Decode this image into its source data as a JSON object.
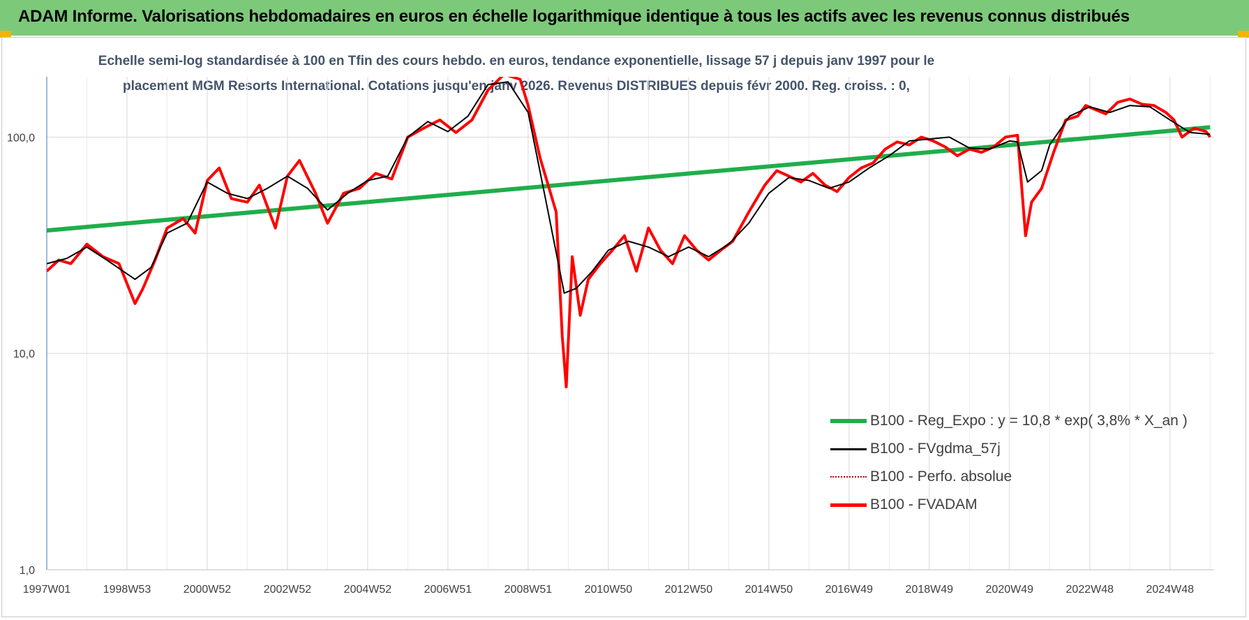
{
  "banner": {
    "title": "ADAM Informe. Valorisations hebdomadaires en euros en échelle logarithmique identique à tous les actifs avec les revenus connus distribués"
  },
  "colors": {
    "banner_bg": "#7dc97a",
    "regression": "#1fae4b",
    "smoothed": "#000000",
    "absolute": "#c00000",
    "fvadam": "#ff0000",
    "gridline": "#d9d9d9",
    "subtitle": "#44546a"
  },
  "chart_data": {
    "type": "line",
    "title_line1": "Echelle semi-log standardisée à 100 en Tfin des cours hebdo. en euros, tendance exponentielle, lissage 57 j depuis janv 1997 pour le",
    "title_line2": "placement MGM Resorts International. Cotations jusqu'en janv 2026.  Revenus DISTRIBUES depuis févr 2000.  Reg. croiss. : 0,",
    "y_scale": "log",
    "ylim": [
      1,
      190
    ],
    "y_ticks": [
      {
        "value": 1,
        "label": "1,0"
      },
      {
        "value": 10,
        "label": "10,0"
      },
      {
        "value": 100,
        "label": "100,0"
      }
    ],
    "xlim": [
      1997.0,
      2026.1
    ],
    "x_ticks": [
      {
        "value": 1997.0,
        "label": "1997W01"
      },
      {
        "value": 1999.0,
        "label": "1998W53"
      },
      {
        "value": 2001.0,
        "label": "2000W52"
      },
      {
        "value": 2003.0,
        "label": "2002W52"
      },
      {
        "value": 2005.0,
        "label": "2004W52"
      },
      {
        "value": 2007.0,
        "label": "2006W51"
      },
      {
        "value": 2009.0,
        "label": "2008W51"
      },
      {
        "value": 2011.0,
        "label": "2010W50"
      },
      {
        "value": 2013.0,
        "label": "2012W50"
      },
      {
        "value": 2015.0,
        "label": "2014W50"
      },
      {
        "value": 2017.0,
        "label": "2016W49"
      },
      {
        "value": 2019.0,
        "label": "2018W49"
      },
      {
        "value": 2021.0,
        "label": "2020W49"
      },
      {
        "value": 2023.0,
        "label": "2022W48"
      },
      {
        "value": 2025.0,
        "label": "2024W48"
      }
    ],
    "grid": true,
    "legend_placement": "bottom-right",
    "series": [
      {
        "name": "B100 - Reg_Expo : y = 10,8 * exp( 3,8% *  X_an )",
        "color_key": "regression",
        "points": [
          [
            1997.0,
            37
          ],
          [
            2026.0,
            111
          ]
        ]
      },
      {
        "name": "B100 - FVgdma_57j",
        "color_key": "smoothed",
        "points": [
          [
            1997.0,
            26
          ],
          [
            1997.5,
            27.5
          ],
          [
            1998.0,
            31
          ],
          [
            1998.5,
            27
          ],
          [
            1999.2,
            22
          ],
          [
            1999.6,
            25
          ],
          [
            2000.0,
            36
          ],
          [
            2000.5,
            40
          ],
          [
            2001.0,
            62
          ],
          [
            2001.5,
            55
          ],
          [
            2002.0,
            52
          ],
          [
            2002.5,
            58
          ],
          [
            2003.0,
            66
          ],
          [
            2003.5,
            58
          ],
          [
            2004.0,
            46
          ],
          [
            2004.5,
            55
          ],
          [
            2005.0,
            63
          ],
          [
            2005.5,
            66
          ],
          [
            2006.0,
            100
          ],
          [
            2006.5,
            118
          ],
          [
            2007.0,
            106
          ],
          [
            2007.5,
            125
          ],
          [
            2008.0,
            175
          ],
          [
            2008.5,
            180
          ],
          [
            2009.0,
            130
          ],
          [
            2009.5,
            45
          ],
          [
            2009.9,
            19
          ],
          [
            2010.2,
            20
          ],
          [
            2010.6,
            24
          ],
          [
            2011.0,
            30
          ],
          [
            2011.5,
            33
          ],
          [
            2012.0,
            31
          ],
          [
            2012.5,
            28
          ],
          [
            2013.0,
            31
          ],
          [
            2013.5,
            28
          ],
          [
            2014.0,
            32
          ],
          [
            2014.5,
            40
          ],
          [
            2015.0,
            55
          ],
          [
            2015.5,
            65
          ],
          [
            2016.0,
            63
          ],
          [
            2016.5,
            58
          ],
          [
            2017.0,
            62
          ],
          [
            2017.5,
            72
          ],
          [
            2018.0,
            82
          ],
          [
            2018.5,
            96
          ],
          [
            2019.0,
            98
          ],
          [
            2019.5,
            100
          ],
          [
            2020.0,
            89
          ],
          [
            2020.5,
            88
          ],
          [
            2021.0,
            96
          ],
          [
            2021.2,
            95
          ],
          [
            2021.45,
            62
          ],
          [
            2021.8,
            70
          ],
          [
            2022.0,
            92
          ],
          [
            2022.5,
            125
          ],
          [
            2023.0,
            138
          ],
          [
            2023.5,
            130
          ],
          [
            2024.0,
            140
          ],
          [
            2024.5,
            138
          ],
          [
            2025.0,
            120
          ],
          [
            2025.5,
            105
          ],
          [
            2026.0,
            103
          ]
        ]
      },
      {
        "name": "B100 - Perfo. absolue",
        "color_key": "absolute",
        "points": [
          [
            1997.0,
            24
          ],
          [
            1997.3,
            27
          ],
          [
            1997.6,
            26
          ],
          [
            1998.0,
            32
          ],
          [
            1998.4,
            28
          ],
          [
            1998.8,
            26
          ],
          [
            1999.2,
            17
          ],
          [
            1999.4,
            20
          ],
          [
            1999.7,
            27
          ],
          [
            2000.0,
            38
          ],
          [
            2000.4,
            42
          ],
          [
            2000.7,
            36
          ],
          [
            2001.0,
            63
          ],
          [
            2001.3,
            72
          ],
          [
            2001.6,
            52
          ],
          [
            2002.0,
            50
          ],
          [
            2002.3,
            60
          ],
          [
            2002.7,
            38
          ],
          [
            2003.0,
            66
          ],
          [
            2003.3,
            78
          ],
          [
            2003.7,
            55
          ],
          [
            2004.0,
            40
          ],
          [
            2004.4,
            55
          ],
          [
            2004.8,
            58
          ],
          [
            2005.2,
            68
          ],
          [
            2005.6,
            64
          ],
          [
            2006.0,
            100
          ],
          [
            2006.4,
            110
          ],
          [
            2006.8,
            120
          ],
          [
            2007.2,
            105
          ],
          [
            2007.6,
            120
          ],
          [
            2008.0,
            165
          ],
          [
            2008.4,
            195
          ],
          [
            2008.8,
            185
          ],
          [
            2009.0,
            140
          ],
          [
            2009.3,
            80
          ],
          [
            2009.5,
            60
          ],
          [
            2009.7,
            45
          ],
          [
            2009.85,
            12
          ],
          [
            2009.95,
            7
          ],
          [
            2010.1,
            28
          ],
          [
            2010.3,
            15
          ],
          [
            2010.5,
            22
          ],
          [
            2010.8,
            26
          ],
          [
            2011.1,
            30
          ],
          [
            2011.4,
            35
          ],
          [
            2011.7,
            24
          ],
          [
            2012.0,
            38
          ],
          [
            2012.3,
            30
          ],
          [
            2012.6,
            26
          ],
          [
            2012.9,
            35
          ],
          [
            2013.2,
            30
          ],
          [
            2013.5,
            27
          ],
          [
            2013.8,
            30
          ],
          [
            2014.1,
            33
          ],
          [
            2014.5,
            45
          ],
          [
            2014.9,
            60
          ],
          [
            2015.2,
            70
          ],
          [
            2015.5,
            66
          ],
          [
            2015.8,
            62
          ],
          [
            2016.1,
            68
          ],
          [
            2016.4,
            60
          ],
          [
            2016.7,
            56
          ],
          [
            2017.0,
            65
          ],
          [
            2017.3,
            72
          ],
          [
            2017.6,
            76
          ],
          [
            2017.9,
            88
          ],
          [
            2018.2,
            95
          ],
          [
            2018.5,
            92
          ],
          [
            2018.8,
            100
          ],
          [
            2019.1,
            96
          ],
          [
            2019.4,
            90
          ],
          [
            2019.7,
            82
          ],
          [
            2020.0,
            88
          ],
          [
            2020.3,
            85
          ],
          [
            2020.6,
            90
          ],
          [
            2020.9,
            100
          ],
          [
            2021.2,
            102
          ],
          [
            2021.4,
            35
          ],
          [
            2021.55,
            50
          ],
          [
            2021.8,
            58
          ],
          [
            2022.1,
            85
          ],
          [
            2022.4,
            120
          ],
          [
            2022.7,
            125
          ],
          [
            2022.9,
            140
          ],
          [
            2023.1,
            135
          ],
          [
            2023.4,
            128
          ],
          [
            2023.7,
            145
          ],
          [
            2024.0,
            150
          ],
          [
            2024.3,
            142
          ],
          [
            2024.6,
            140
          ],
          [
            2024.9,
            130
          ],
          [
            2025.1,
            120
          ],
          [
            2025.3,
            100
          ],
          [
            2025.6,
            110
          ],
          [
            2025.9,
            106
          ],
          [
            2026.0,
            100
          ]
        ]
      },
      {
        "name": "B100 - FVADAM",
        "color_key": "fvadam",
        "points": [
          [
            1997.0,
            24
          ],
          [
            1997.3,
            27
          ],
          [
            1997.6,
            26
          ],
          [
            1998.0,
            32
          ],
          [
            1998.4,
            28
          ],
          [
            1998.8,
            26
          ],
          [
            1999.2,
            17
          ],
          [
            1999.4,
            20
          ],
          [
            1999.7,
            27
          ],
          [
            2000.0,
            38
          ],
          [
            2000.4,
            42
          ],
          [
            2000.7,
            36
          ],
          [
            2001.0,
            63
          ],
          [
            2001.3,
            72
          ],
          [
            2001.6,
            52
          ],
          [
            2002.0,
            50
          ],
          [
            2002.3,
            60
          ],
          [
            2002.7,
            38
          ],
          [
            2003.0,
            66
          ],
          [
            2003.3,
            78
          ],
          [
            2003.7,
            55
          ],
          [
            2004.0,
            40
          ],
          [
            2004.4,
            55
          ],
          [
            2004.8,
            58
          ],
          [
            2005.2,
            68
          ],
          [
            2005.6,
            64
          ],
          [
            2006.0,
            100
          ],
          [
            2006.4,
            110
          ],
          [
            2006.8,
            120
          ],
          [
            2007.2,
            105
          ],
          [
            2007.6,
            120
          ],
          [
            2008.0,
            165
          ],
          [
            2008.4,
            195
          ],
          [
            2008.8,
            185
          ],
          [
            2009.0,
            140
          ],
          [
            2009.3,
            80
          ],
          [
            2009.5,
            60
          ],
          [
            2009.7,
            45
          ],
          [
            2009.85,
            12
          ],
          [
            2009.95,
            7
          ],
          [
            2010.1,
            28
          ],
          [
            2010.3,
            15
          ],
          [
            2010.5,
            22
          ],
          [
            2010.8,
            26
          ],
          [
            2011.1,
            30
          ],
          [
            2011.4,
            35
          ],
          [
            2011.7,
            24
          ],
          [
            2012.0,
            38
          ],
          [
            2012.3,
            30
          ],
          [
            2012.6,
            26
          ],
          [
            2012.9,
            35
          ],
          [
            2013.2,
            30
          ],
          [
            2013.5,
            27
          ],
          [
            2013.8,
            30
          ],
          [
            2014.1,
            33
          ],
          [
            2014.5,
            45
          ],
          [
            2014.9,
            60
          ],
          [
            2015.2,
            70
          ],
          [
            2015.5,
            66
          ],
          [
            2015.8,
            62
          ],
          [
            2016.1,
            68
          ],
          [
            2016.4,
            60
          ],
          [
            2016.7,
            56
          ],
          [
            2017.0,
            65
          ],
          [
            2017.3,
            72
          ],
          [
            2017.6,
            76
          ],
          [
            2017.9,
            88
          ],
          [
            2018.2,
            95
          ],
          [
            2018.5,
            92
          ],
          [
            2018.8,
            100
          ],
          [
            2019.1,
            96
          ],
          [
            2019.4,
            90
          ],
          [
            2019.7,
            82
          ],
          [
            2020.0,
            88
          ],
          [
            2020.3,
            85
          ],
          [
            2020.6,
            90
          ],
          [
            2020.9,
            100
          ],
          [
            2021.2,
            102
          ],
          [
            2021.4,
            35
          ],
          [
            2021.55,
            50
          ],
          [
            2021.8,
            58
          ],
          [
            2022.1,
            85
          ],
          [
            2022.4,
            120
          ],
          [
            2022.7,
            125
          ],
          [
            2022.9,
            140
          ],
          [
            2023.1,
            135
          ],
          [
            2023.4,
            128
          ],
          [
            2023.7,
            145
          ],
          [
            2024.0,
            150
          ],
          [
            2024.3,
            142
          ],
          [
            2024.6,
            140
          ],
          [
            2024.9,
            130
          ],
          [
            2025.1,
            120
          ],
          [
            2025.3,
            100
          ],
          [
            2025.6,
            110
          ],
          [
            2025.9,
            106
          ],
          [
            2026.0,
            100
          ]
        ]
      }
    ]
  }
}
